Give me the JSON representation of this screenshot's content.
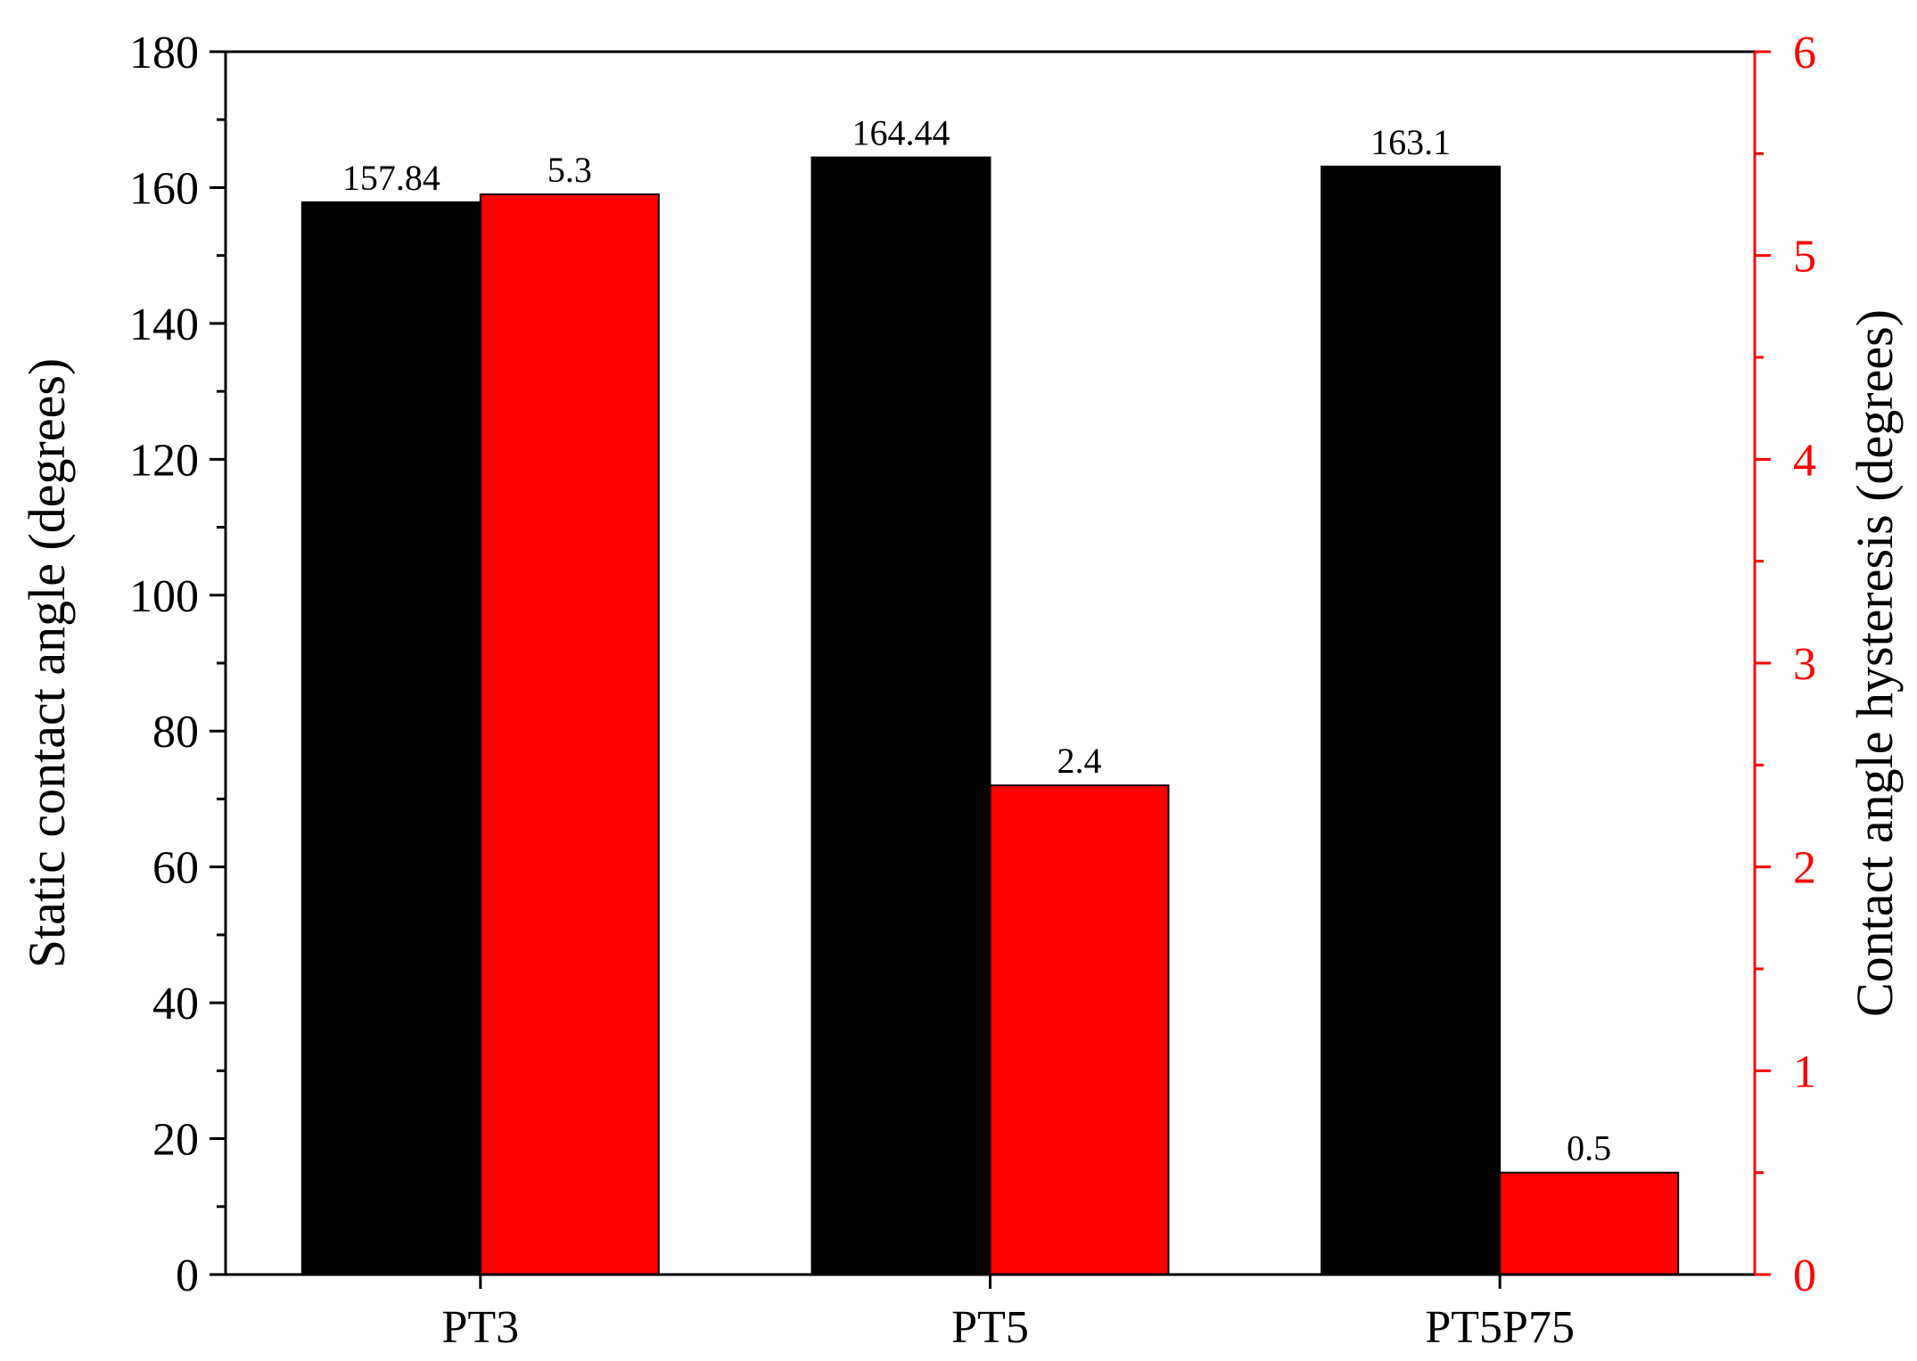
{
  "chart_data": {
    "type": "bar",
    "title": "",
    "categories": [
      "PT3",
      "PT5",
      "PT5P75"
    ],
    "series": [
      {
        "axis": "left",
        "color": "#000000",
        "values": [
          157.84,
          164.44,
          163.1
        ],
        "value_labels": [
          "157.84",
          "164.44",
          "163.1"
        ]
      },
      {
        "axis": "right",
        "color": "#ff0000",
        "values": [
          5.3,
          2.4,
          0.5
        ],
        "value_labels": [
          "5.3",
          "2.4",
          "0.5"
        ]
      }
    ],
    "xlabel": "",
    "ylabel": "Static contact angle (degrees)",
    "y2label": "Contact angle hysteresis (degrees)",
    "ylim": [
      0,
      180
    ],
    "y2lim": [
      0,
      6
    ],
    "yticks": [
      "0",
      "20",
      "40",
      "60",
      "80",
      "100",
      "120",
      "140",
      "160",
      "180"
    ],
    "y2ticks": [
      "0",
      "1",
      "2",
      "3",
      "4",
      "5",
      "6"
    ],
    "y2_axis_color": "#ff0000",
    "grid": false,
    "legend": "none"
  }
}
